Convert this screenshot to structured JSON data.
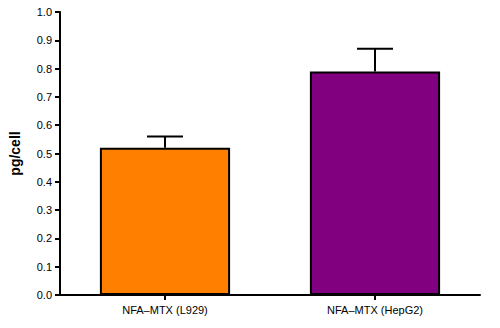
{
  "chart_data": {
    "type": "bar",
    "y_label": "pg/cell",
    "categories": [
      "NFA–MTX (L929)",
      "NFA–MTX (HepG2)"
    ],
    "values": [
      0.52,
      0.79
    ],
    "errors": [
      0.04,
      0.08
    ],
    "colors": [
      "#ff8000",
      "#800080"
    ],
    "ylim": [
      0,
      1
    ],
    "yticks": [
      {
        "value": 0,
        "label": "0.0"
      },
      0.1,
      0.2,
      0.3,
      0.4,
      0.5,
      0.6,
      0.7,
      0.8,
      0.9,
      {
        "value": 1,
        "label": "1.0"
      }
    ],
    "grid": false
  }
}
